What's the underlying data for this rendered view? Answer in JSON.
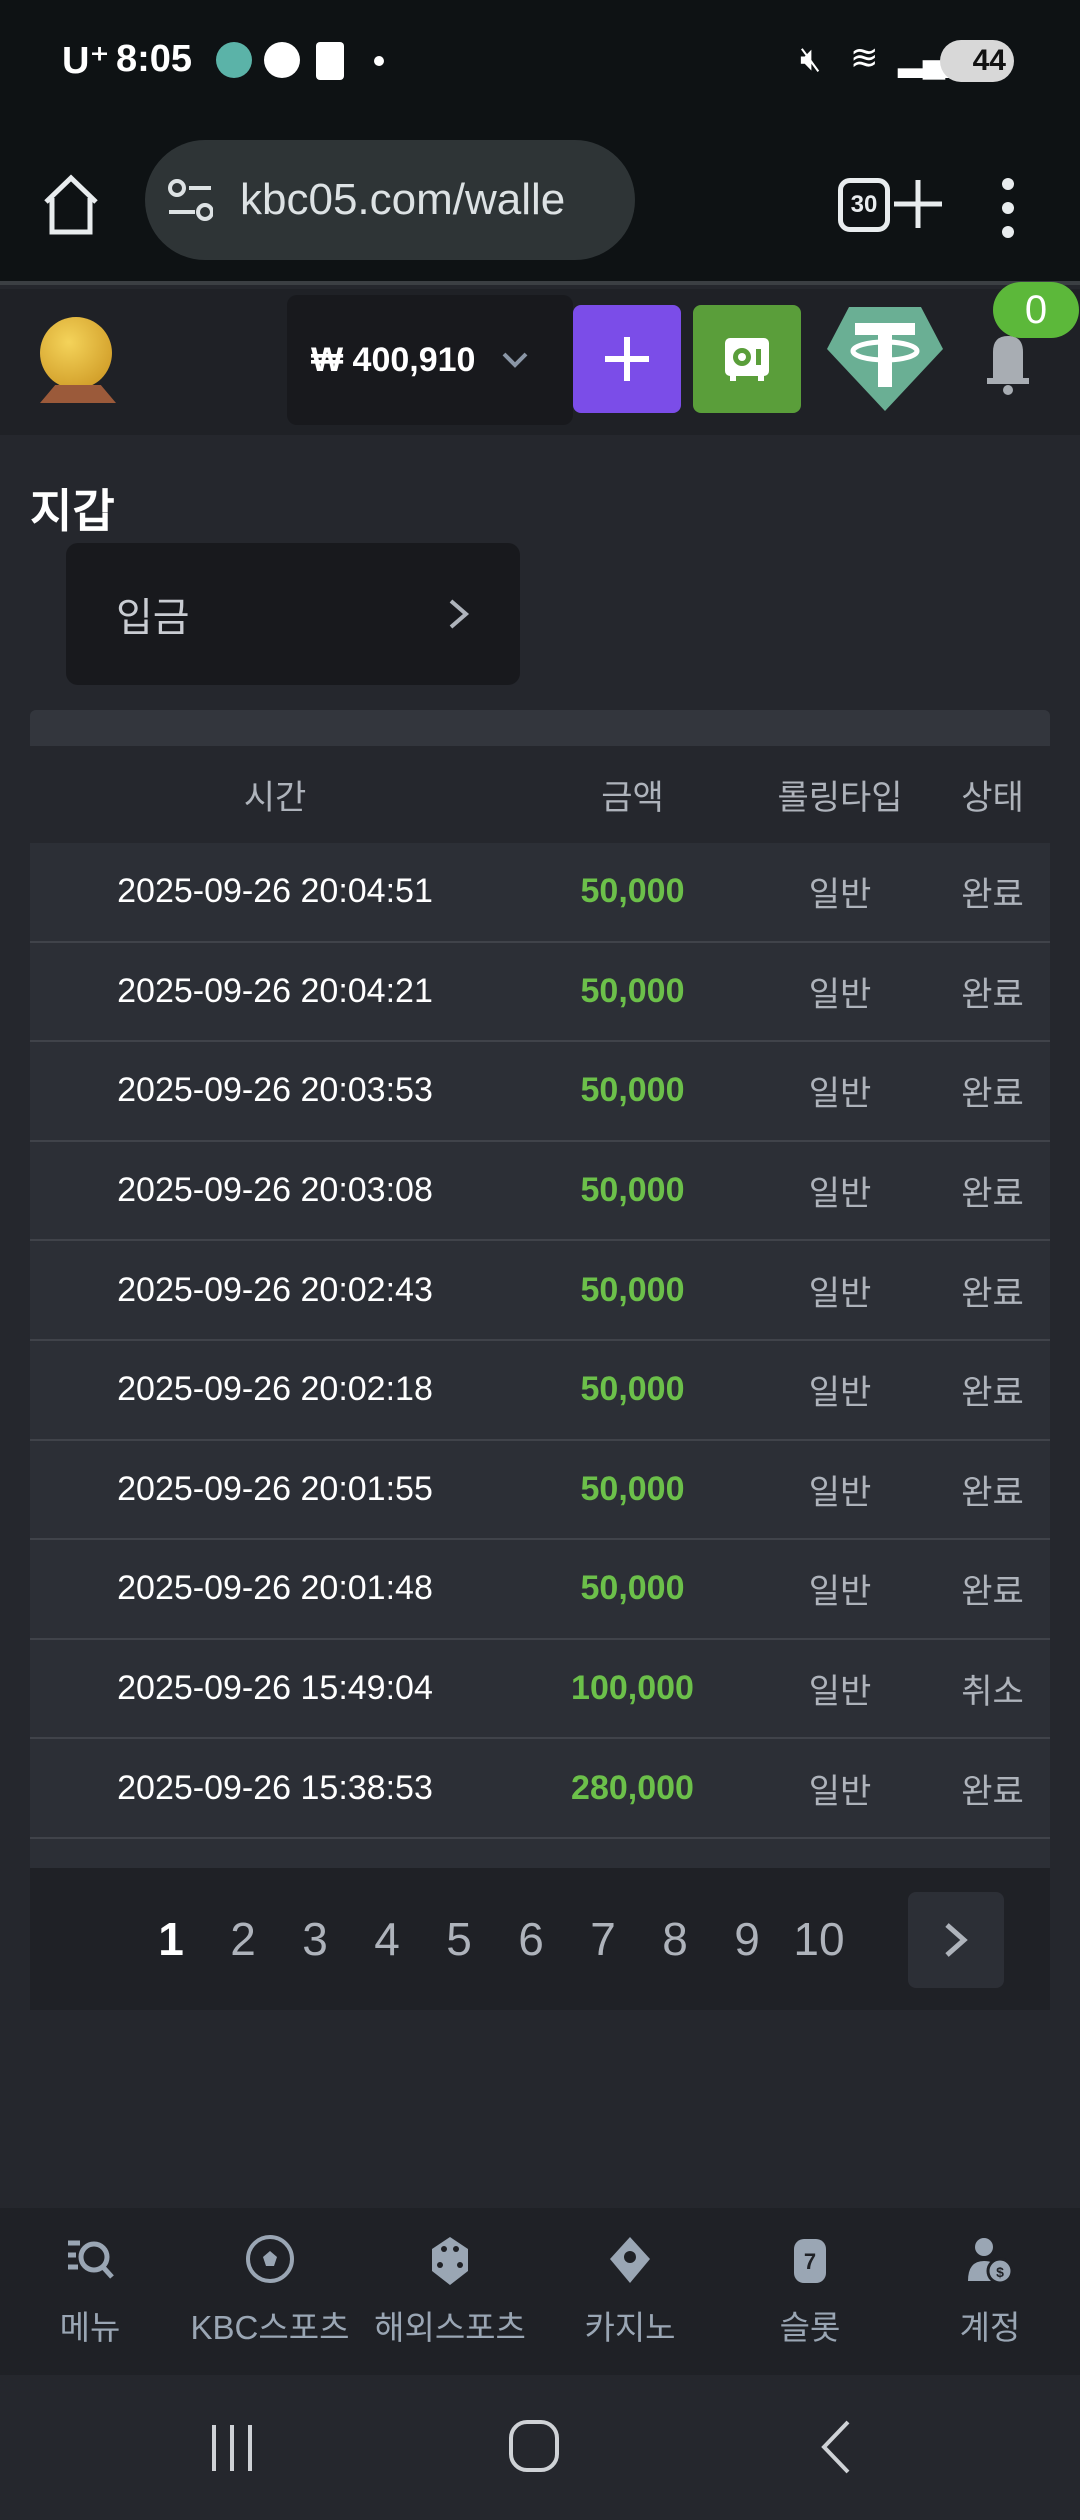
{
  "status_bar": {
    "carrier": "U⁺",
    "time": "8:05",
    "battery": "44"
  },
  "browser": {
    "url": "kbc05.com/walle",
    "tab_count": "30"
  },
  "header": {
    "balance": "₩ 400,910",
    "notification_count": "0",
    "colors": {
      "deposit_button": "#7b4de8",
      "safe_button": "#5a9e3a",
      "tether": "#6aaf94",
      "badge": "#5cb83a"
    }
  },
  "page": {
    "title": "지갑",
    "deposit_label": "입금"
  },
  "table": {
    "columns": [
      "시간",
      "금액",
      "롤링타입",
      "상태"
    ],
    "rows": [
      [
        "2025-09-26 20:04:51",
        "50,000",
        "일반",
        "완료"
      ],
      [
        "2025-09-26 20:04:21",
        "50,000",
        "일반",
        "완료"
      ],
      [
        "2025-09-26 20:03:53",
        "50,000",
        "일반",
        "완료"
      ],
      [
        "2025-09-26 20:03:08",
        "50,000",
        "일반",
        "완료"
      ],
      [
        "2025-09-26 20:02:43",
        "50,000",
        "일반",
        "완료"
      ],
      [
        "2025-09-26 20:02:18",
        "50,000",
        "일반",
        "완료"
      ],
      [
        "2025-09-26 20:01:55",
        "50,000",
        "일반",
        "완료"
      ],
      [
        "2025-09-26 20:01:48",
        "50,000",
        "일반",
        "완료"
      ],
      [
        "2025-09-26 15:49:04",
        "100,000",
        "일반",
        "취소"
      ],
      [
        "2025-09-26 15:38:53",
        "280,000",
        "일반",
        "완료"
      ]
    ],
    "amount_color": "#6cc04a"
  },
  "pagination": {
    "pages": [
      "1",
      "2",
      "3",
      "4",
      "5",
      "6",
      "7",
      "8",
      "9",
      "10"
    ],
    "current": "1"
  },
  "bottom_nav": [
    {
      "label": "메뉴",
      "icon": "menu-search-icon"
    },
    {
      "label": "KBC스포츠",
      "icon": "soccer-ball-icon"
    },
    {
      "label": "해외스포츠",
      "icon": "dice-icon"
    },
    {
      "label": "카지노",
      "icon": "cards-icon"
    },
    {
      "label": "슬롯",
      "icon": "slot-seven-icon"
    },
    {
      "label": "계정",
      "icon": "account-coin-icon"
    }
  ]
}
